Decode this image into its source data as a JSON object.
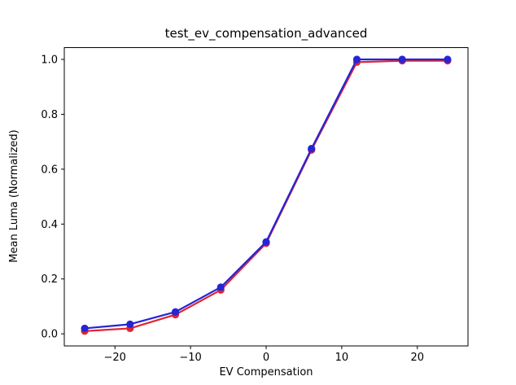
{
  "chart_data": {
    "type": "line",
    "title": "test_ev_compensation_advanced",
    "xlabel": "EV Compensation",
    "ylabel": "Mean Luma (Normalized)",
    "x": [
      -24,
      -18,
      -12,
      -6,
      0,
      6,
      12,
      18,
      24
    ],
    "series": [
      {
        "name": "red-series",
        "color": "#e02433",
        "values": [
          0.01,
          0.02,
          0.07,
          0.16,
          0.33,
          0.67,
          0.99,
          0.995,
          0.995
        ]
      },
      {
        "name": "blue-series",
        "color": "#2525d5",
        "values": [
          0.02,
          0.035,
          0.08,
          0.17,
          0.335,
          0.675,
          1.0,
          1.0,
          1.0
        ]
      }
    ],
    "xlim": [
      -26.7,
      26.7
    ],
    "ylim": [
      -0.044,
      1.043
    ],
    "xticks": {
      "values": [
        -20,
        -10,
        0,
        10,
        20
      ],
      "labels": [
        "−20",
        "−10",
        "0",
        "10",
        "20"
      ]
    },
    "yticks": {
      "values": [
        0,
        0.2,
        0.4,
        0.6,
        0.8,
        1.0
      ],
      "labels": [
        "0.0",
        "0.2",
        "0.4",
        "0.6",
        "0.8",
        "1.0"
      ]
    },
    "marker": "circle",
    "legend": "none",
    "grid": "off",
    "background": "#ffffff",
    "spine_color": "#000000"
  }
}
